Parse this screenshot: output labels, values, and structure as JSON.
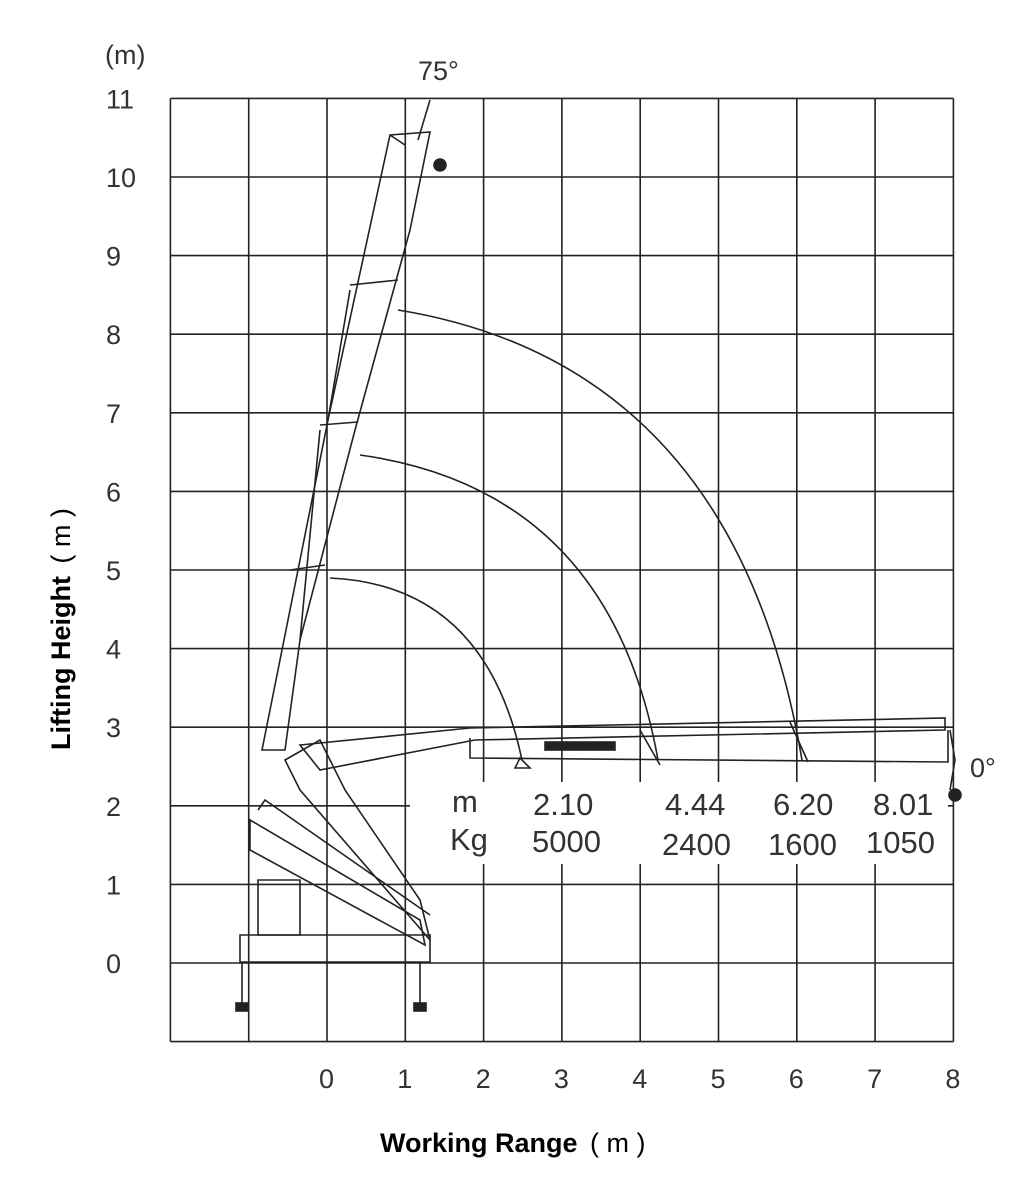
{
  "chart_data": {
    "type": "line",
    "xlabel": "Working Range",
    "xunit": "( m )",
    "ylabel": "Lifting Height",
    "yunit": "( m )",
    "y_unit_top": "(m)",
    "xlim": [
      -2,
      8
    ],
    "ylim": [
      -1,
      11
    ],
    "x_ticks": [
      "0",
      "1",
      "2",
      "3",
      "4",
      "5",
      "6",
      "7",
      "8"
    ],
    "y_ticks": [
      "0",
      "1",
      "2",
      "3",
      "4",
      "5",
      "6",
      "7",
      "8",
      "9",
      "10",
      "11"
    ],
    "grid": true,
    "boom_angles": {
      "max": "75°",
      "min": "0°"
    },
    "table": {
      "row_labels": [
        "m",
        "Kg"
      ],
      "reach_m": [
        "2.10",
        "4.44",
        "6.20",
        "8.01"
      ],
      "load_kg": [
        "5000",
        "2400",
        "1600",
        "1050"
      ]
    },
    "series": [
      {
        "x": [
          2.1,
          4.44,
          6.2,
          8.01
        ],
        "y": [
          5000,
          2400,
          1600,
          1050
        ]
      }
    ],
    "colors": {
      "line": "#222222",
      "grid": "#222222",
      "background": "#ffffff"
    }
  }
}
